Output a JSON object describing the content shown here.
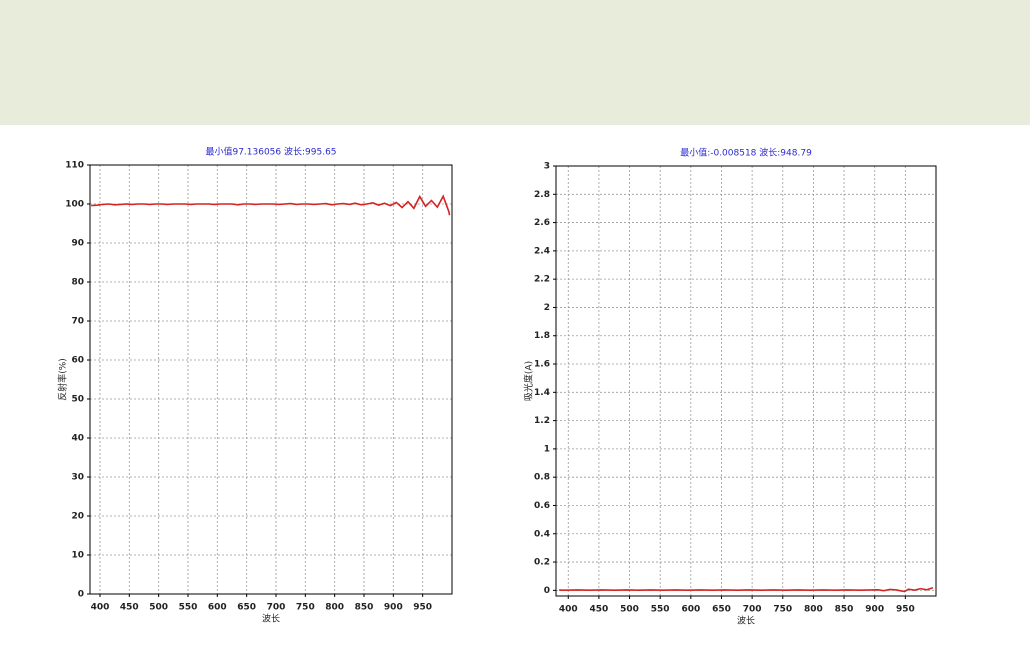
{
  "chart_data": [
    {
      "type": "line",
      "title": "最小值97.136056 波长:995.65",
      "x_label": "波长",
      "y_label": "反射率(%)",
      "x": [
        385,
        395,
        405,
        415,
        425,
        435,
        445,
        455,
        465,
        475,
        485,
        495,
        505,
        515,
        525,
        535,
        545,
        555,
        565,
        575,
        585,
        595,
        605,
        615,
        625,
        635,
        645,
        655,
        665,
        675,
        685,
        695,
        705,
        715,
        725,
        735,
        745,
        755,
        765,
        775,
        785,
        795,
        805,
        815,
        825,
        835,
        845,
        855,
        865,
        875,
        885,
        895,
        905,
        915,
        925,
        935,
        945,
        955,
        965,
        975,
        985,
        995,
        995.65
      ],
      "series": [
        {
          "color": "#d42424",
          "values": [
            99.6,
            99.7,
            99.9,
            100.0,
            99.8,
            99.9,
            100.0,
            99.9,
            100.0,
            100.0,
            99.9,
            100.0,
            100.0,
            99.9,
            100.0,
            100.0,
            100.0,
            99.9,
            100.0,
            100.0,
            100.0,
            99.9,
            100.0,
            100.0,
            100.0,
            99.8,
            100.0,
            100.0,
            99.9,
            100.0,
            100.0,
            100.0,
            99.9,
            100.0,
            100.1,
            99.9,
            100.0,
            100.0,
            99.9,
            100.0,
            100.1,
            99.8,
            100.0,
            100.1,
            99.9,
            100.2,
            99.8,
            100.0,
            100.3,
            99.7,
            100.2,
            99.6,
            100.4,
            99.1,
            100.6,
            98.9,
            101.9,
            99.4,
            100.9,
            99.2,
            102.0,
            97.9,
            97.136056
          ]
        }
      ],
      "xlim": [
        383,
        1000
      ],
      "xticks": [
        400,
        450,
        500,
        550,
        600,
        650,
        700,
        750,
        800,
        850,
        900,
        950
      ],
      "ylim": [
        0,
        110
      ],
      "yticks": [
        0,
        10,
        20,
        30,
        40,
        50,
        60,
        70,
        80,
        90,
        100,
        110
      ],
      "grid": true
    },
    {
      "type": "line",
      "title": "最小值:-0.008518 波长:948.79",
      "x_label": "波长",
      "y_label": "吸光度(A)",
      "x": [
        385,
        395,
        405,
        415,
        425,
        435,
        445,
        455,
        465,
        475,
        485,
        495,
        505,
        515,
        525,
        535,
        545,
        555,
        565,
        575,
        585,
        595,
        605,
        615,
        625,
        635,
        645,
        655,
        665,
        675,
        685,
        695,
        705,
        715,
        725,
        735,
        745,
        755,
        765,
        775,
        785,
        795,
        805,
        815,
        825,
        835,
        845,
        855,
        865,
        875,
        885,
        895,
        905,
        915,
        925,
        935,
        948.79,
        955,
        965,
        975,
        985,
        995
      ],
      "series": [
        {
          "color": "#d42424",
          "values": [
            0.002,
            0.001,
            0.002,
            0.003,
            0.002,
            0.001,
            0.002,
            0.003,
            0.002,
            0.001,
            0.002,
            0.003,
            0.002,
            0.001,
            0.002,
            0.003,
            0.002,
            0.001,
            0.002,
            0.003,
            0.002,
            0.001,
            0.002,
            0.003,
            0.002,
            0.001,
            0.002,
            0.003,
            0.002,
            0.001,
            0.002,
            0.003,
            0.002,
            0.001,
            0.002,
            0.003,
            0.002,
            0.001,
            0.002,
            0.003,
            0.002,
            0.001,
            0.002,
            0.003,
            0.002,
            0.001,
            0.002,
            0.003,
            0.002,
            0.001,
            0.002,
            0.003,
            0.004,
            -0.002,
            0.006,
            0.003,
            -0.008518,
            0.008,
            0.001,
            0.012,
            0.004,
            0.018
          ]
        }
      ],
      "xlim": [
        380,
        1000
      ],
      "xticks": [
        400,
        450,
        500,
        550,
        600,
        650,
        700,
        750,
        800,
        850,
        900,
        950
      ],
      "ylim": [
        -0.04,
        3
      ],
      "yticks": [
        0,
        0.2,
        0.4,
        0.6,
        0.8,
        1,
        1.2,
        1.4,
        1.6,
        1.8,
        2,
        2.2,
        2.4,
        2.6,
        2.8,
        3
      ],
      "grid": true
    }
  ]
}
